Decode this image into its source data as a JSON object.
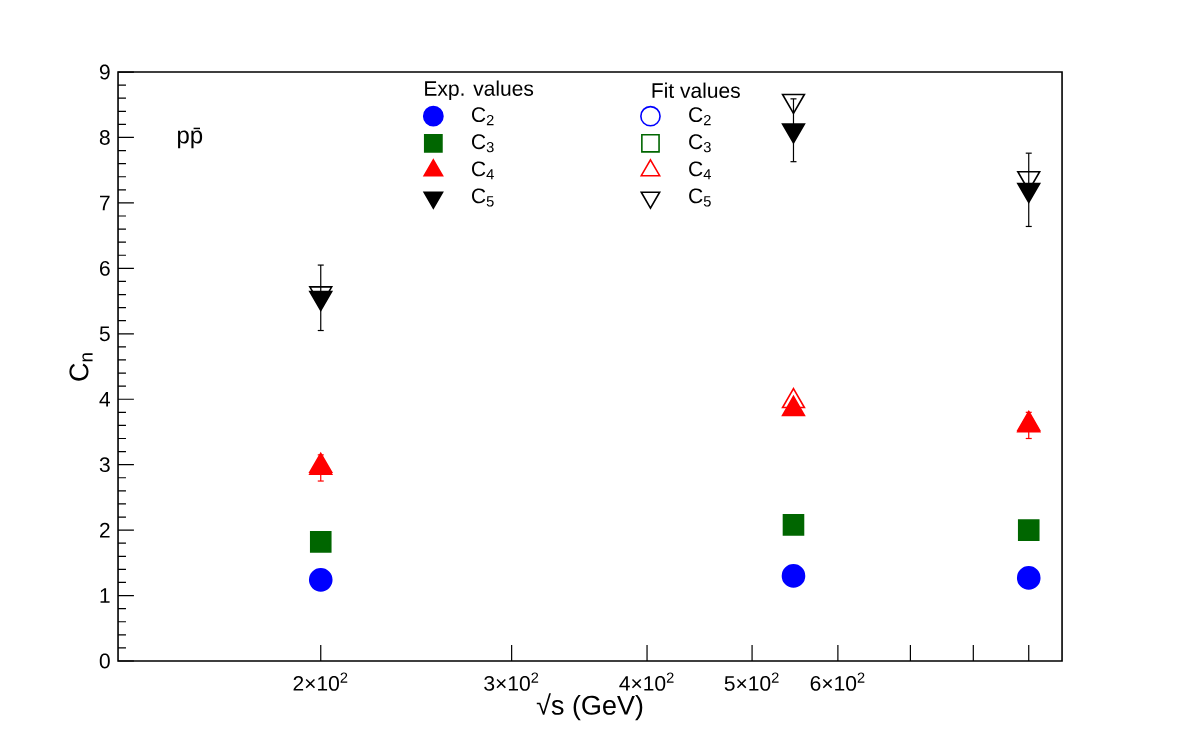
{
  "chart_data": {
    "type": "scatter",
    "xlabel": "√s (GeV)",
    "ylabel": "C$_{n}$",
    "annotations": [
      "pp̄",
      "Exp. values",
      "Fit values"
    ],
    "x": [
      200,
      546,
      900
    ],
    "log": "x",
    "xlim": [
      130,
      966
    ],
    "xticks": [
      {
        "value": 200,
        "label": "2×10$^{2}$"
      },
      {
        "value": 300,
        "label": "3×10$^{2}$"
      },
      {
        "value": 400,
        "label": "4×10$^{2}$"
      },
      {
        "value": 500,
        "label": "5×10$^{2}$"
      },
      {
        "value": 600,
        "label": "6×10$^{2}$"
      },
      {
        "value": 700,
        "label": null
      },
      {
        "value": 800,
        "label": null
      },
      {
        "value": 900,
        "label": null
      }
    ],
    "ylim": [
      0,
      9
    ],
    "yticks": [
      0,
      1,
      2,
      3,
      4,
      5,
      6,
      7,
      8,
      9
    ],
    "legend": "top",
    "series": [
      {
        "name": "C$_{2}$",
        "color": "#0000ff",
        "marker": "circle",
        "values": [
          1.24,
          1.3,
          1.27
        ]
      },
      {
        "name": "C$_{3}$",
        "color": "#006600",
        "marker": "square",
        "values": [
          1.82,
          2.08,
          2.0
        ]
      },
      {
        "name": "C$_{4}$",
        "color": "#ff0000",
        "marker": "triangle",
        "values": [
          2.95,
          3.85,
          3.6
        ],
        "errors": [
          0.2,
          0.08,
          0.2
        ]
      },
      {
        "name": "C$_{5}$",
        "color": "#000000",
        "marker": "triangle-down",
        "values": [
          5.55,
          8.11,
          7.2
        ],
        "errors": [
          0.5,
          0.48,
          0.56
        ]
      },
      {
        "name": "C$_{2}$",
        "color": "#0000ff",
        "marker": "circle-open",
        "values": [
          null,
          null,
          null
        ]
      },
      {
        "name": "C$_{3}$",
        "color": "#006600",
        "marker": "square-open",
        "values": [
          null,
          null,
          null
        ]
      },
      {
        "name": "C$_{4}$",
        "color": "#ff0000",
        "marker": "triangle-open",
        "values": [
          2.98,
          3.97,
          3.62
        ]
      },
      {
        "name": "C$_{5}$",
        "color": "#000000",
        "marker": "triangle-down-open",
        "values": [
          5.62,
          8.56,
          7.38
        ]
      }
    ]
  }
}
